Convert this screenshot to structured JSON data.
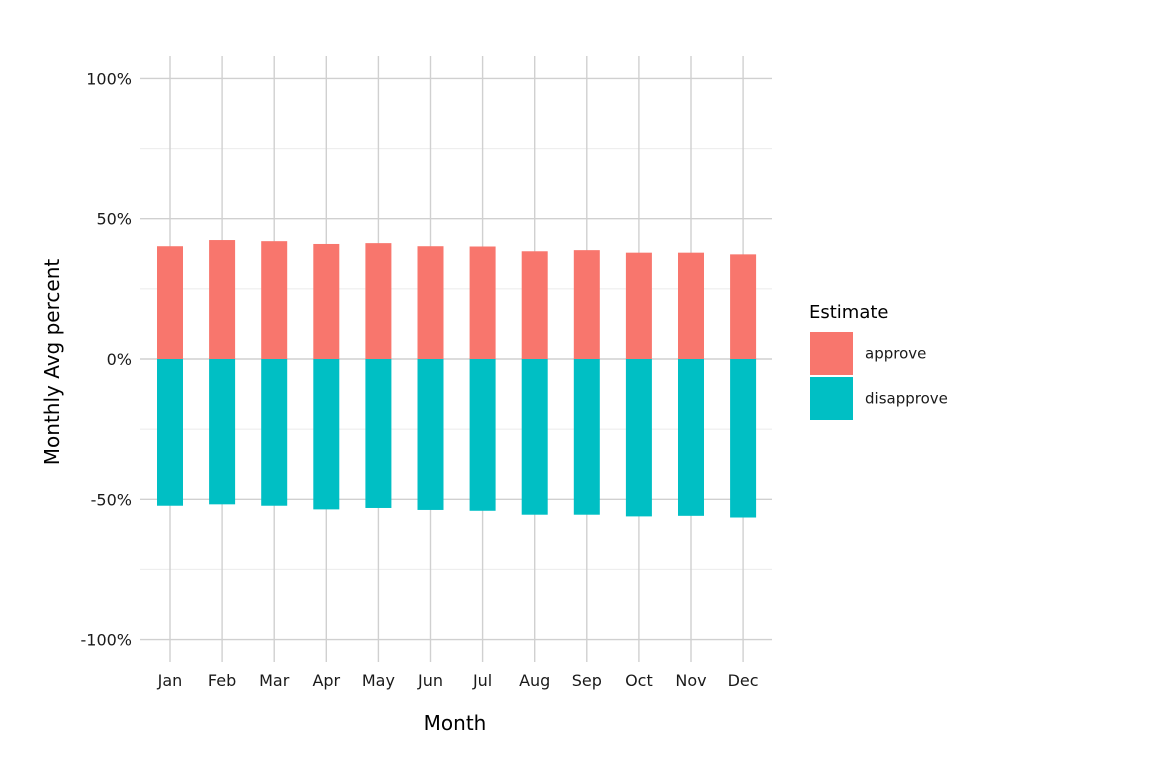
{
  "chart_data": {
    "type": "bar",
    "stacked": true,
    "diverging": true,
    "categories": [
      "Jan",
      "Feb",
      "Mar",
      "Apr",
      "May",
      "Jun",
      "Jul",
      "Aug",
      "Sep",
      "Oct",
      "Nov",
      "Dec"
    ],
    "series": [
      {
        "name": "approve",
        "color": "#F8766D",
        "values": [
          40.2,
          42.4,
          42.0,
          41.0,
          41.3,
          40.2,
          40.1,
          38.4,
          38.8,
          37.9,
          37.9,
          37.3
        ]
      },
      {
        "name": "disapprove",
        "color": "#00BFC4",
        "values": [
          -52.3,
          -51.8,
          -52.3,
          -53.6,
          -53.1,
          -53.8,
          -54.1,
          -55.5,
          -55.5,
          -56.1,
          -55.9,
          -56.5
        ]
      }
    ],
    "xlabel": "Month",
    "ylabel": "Monthly Avg percent",
    "ylim": [
      -108,
      108
    ],
    "yticks": [
      -100,
      -50,
      0,
      50,
      100
    ],
    "ytick_labels": [
      "-100%",
      "-50%",
      "0%",
      "50%",
      "100%"
    ],
    "yminor": [
      -75,
      -25,
      25,
      75
    ],
    "grid": true,
    "legend": {
      "title": "Estimate",
      "position": "right"
    }
  }
}
